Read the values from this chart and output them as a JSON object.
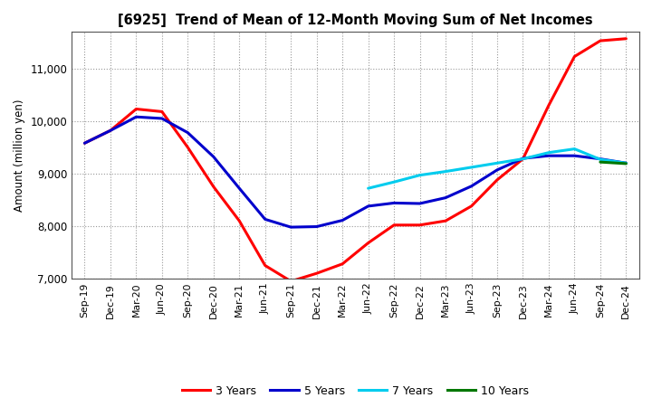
{
  "title": "[6925]  Trend of Mean of 12-Month Moving Sum of Net Incomes",
  "ylabel": "Amount (million yen)",
  "ylim": [
    7000,
    11700
  ],
  "yticks": [
    7000,
    8000,
    9000,
    10000,
    11000
  ],
  "background_color": "#ffffff",
  "plot_bg_color": "#ffffff",
  "grid_color": "#999999",
  "x_labels": [
    "Sep-19",
    "Dec-19",
    "Mar-20",
    "Jun-20",
    "Sep-20",
    "Dec-20",
    "Mar-21",
    "Jun-21",
    "Sep-21",
    "Dec-21",
    "Mar-22",
    "Jun-22",
    "Sep-22",
    "Dec-22",
    "Mar-23",
    "Jun-23",
    "Sep-23",
    "Dec-23",
    "Mar-24",
    "Jun-24",
    "Sep-24",
    "Dec-24"
  ],
  "series": {
    "3 Years": {
      "color": "#ff0000",
      "values": [
        9580,
        9820,
        10230,
        10180,
        9500,
        8750,
        8100,
        7250,
        6950,
        7100,
        7280,
        7680,
        8020,
        8020,
        8100,
        8380,
        8880,
        9280,
        10300,
        11230,
        11530,
        11570
      ]
    },
    "5 Years": {
      "color": "#0000cc",
      "values": [
        9580,
        9820,
        10080,
        10050,
        9780,
        9320,
        8720,
        8130,
        7980,
        7990,
        8110,
        8380,
        8440,
        8430,
        8540,
        8760,
        9070,
        9290,
        9340,
        9340,
        9280,
        9200
      ]
    },
    "7 Years": {
      "color": "#00ccee",
      "values": [
        null,
        null,
        null,
        null,
        null,
        null,
        null,
        null,
        null,
        null,
        null,
        8720,
        8840,
        8970,
        9040,
        9120,
        9200,
        9280,
        9400,
        9470,
        9270,
        9200
      ]
    },
    "10 Years": {
      "color": "#007700",
      "values": [
        null,
        null,
        null,
        null,
        null,
        null,
        null,
        null,
        null,
        null,
        null,
        null,
        null,
        null,
        null,
        null,
        null,
        null,
        null,
        null,
        9220,
        9190
      ]
    }
  },
  "legend_labels": [
    "3 Years",
    "5 Years",
    "7 Years",
    "10 Years"
  ],
  "legend_colors": [
    "#ff0000",
    "#0000cc",
    "#00ccee",
    "#007700"
  ]
}
